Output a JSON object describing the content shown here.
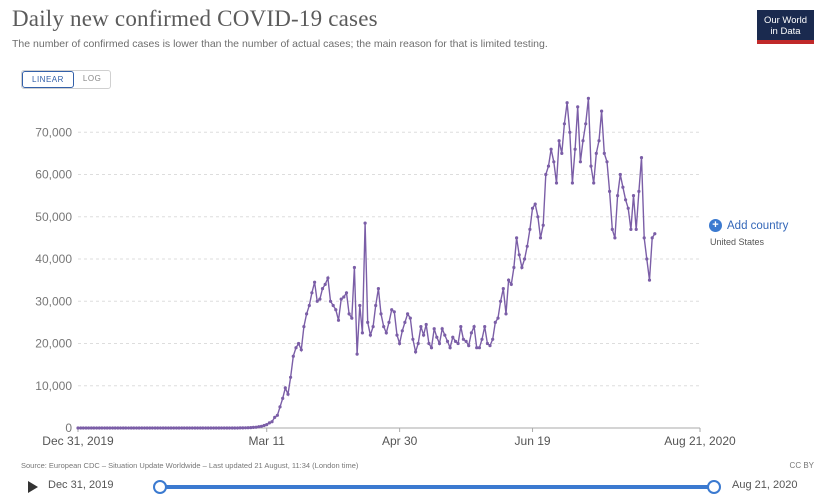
{
  "header": {
    "title": "Daily new confirmed COVID-19 cases",
    "subtitle": "The number of confirmed cases is lower than the number of actual cases; the main reason for that is limited testing.",
    "logo_line1": "Our World",
    "logo_line2": "in Data"
  },
  "scale_toggle": {
    "linear": "LINEAR",
    "log": "LOG",
    "selected": "LINEAR"
  },
  "controls": {
    "add_country": "Add country",
    "series_label": "United States"
  },
  "footer": {
    "source": "Source: European CDC – Situation Update Worldwide – Last updated 21 August, 11:34 (London time)",
    "license": "CC BY"
  },
  "timeline": {
    "start": "Dec 31, 2019",
    "end": "Aug 21, 2020"
  },
  "colors": {
    "series": "#7b5ea7",
    "accent": "#3b7ad0",
    "logo_bg": "#1a2a4f",
    "logo_bar": "#c0292a"
  },
  "chart_data": {
    "type": "line",
    "title": "Daily new confirmed COVID-19 cases",
    "xlabel": "",
    "ylabel": "",
    "ylim": [
      0,
      80000
    ],
    "yticks": [
      0,
      10000,
      20000,
      30000,
      40000,
      50000,
      60000,
      70000
    ],
    "ytick_labels": [
      "0",
      "10,000",
      "20,000",
      "30,000",
      "40,000",
      "50,000",
      "60,000",
      "70,000"
    ],
    "xticks": [
      {
        "day": 0,
        "label": "Dec 31, 2019"
      },
      {
        "day": 71,
        "label": "Mar 11"
      },
      {
        "day": 121,
        "label": "Apr 30"
      },
      {
        "day": 171,
        "label": "Jun 19"
      },
      {
        "day": 234,
        "label": "Aug 21, 2020"
      }
    ],
    "grid": true,
    "series": [
      {
        "name": "United States",
        "points": [
          [
            0,
            0
          ],
          [
            60,
            0
          ],
          [
            63,
            50
          ],
          [
            65,
            100
          ],
          [
            67,
            200
          ],
          [
            69,
            400
          ],
          [
            70,
            600
          ],
          [
            71,
            800
          ],
          [
            72,
            1200
          ],
          [
            73,
            1500
          ],
          [
            74,
            2500
          ],
          [
            75,
            3000
          ],
          [
            76,
            5000
          ],
          [
            77,
            7000
          ],
          [
            78,
            9500
          ],
          [
            79,
            8000
          ],
          [
            80,
            12000
          ],
          [
            81,
            17000
          ],
          [
            82,
            19000
          ],
          [
            83,
            20000
          ],
          [
            84,
            18500
          ],
          [
            85,
            24000
          ],
          [
            86,
            27000
          ],
          [
            87,
            29000
          ],
          [
            88,
            32000
          ],
          [
            89,
            34500
          ],
          [
            90,
            30000
          ],
          [
            91,
            30500
          ],
          [
            92,
            33000
          ],
          [
            93,
            34000
          ],
          [
            94,
            35500
          ],
          [
            95,
            30000
          ],
          [
            96,
            29000
          ],
          [
            97,
            28000
          ],
          [
            98,
            25500
          ],
          [
            99,
            30500
          ],
          [
            100,
            31000
          ],
          [
            101,
            32000
          ],
          [
            102,
            27000
          ],
          [
            103,
            26000
          ],
          [
            104,
            38000
          ],
          [
            105,
            17500
          ],
          [
            106,
            29000
          ],
          [
            107,
            22500
          ],
          [
            108,
            48500
          ],
          [
            109,
            25000
          ],
          [
            110,
            22000
          ],
          [
            111,
            24000
          ],
          [
            112,
            29000
          ],
          [
            113,
            33000
          ],
          [
            114,
            27000
          ],
          [
            115,
            24000
          ],
          [
            116,
            22500
          ],
          [
            117,
            25000
          ],
          [
            118,
            28000
          ],
          [
            119,
            27500
          ],
          [
            120,
            22000
          ],
          [
            121,
            20000
          ],
          [
            122,
            23000
          ],
          [
            123,
            25000
          ],
          [
            124,
            27000
          ],
          [
            125,
            26000
          ],
          [
            126,
            21000
          ],
          [
            127,
            18000
          ],
          [
            128,
            20000
          ],
          [
            129,
            24000
          ],
          [
            130,
            22000
          ],
          [
            131,
            24500
          ],
          [
            132,
            20000
          ],
          [
            133,
            19000
          ],
          [
            134,
            23500
          ],
          [
            135,
            21500
          ],
          [
            136,
            20000
          ],
          [
            137,
            23500
          ],
          [
            138,
            22000
          ],
          [
            139,
            20500
          ],
          [
            140,
            19000
          ],
          [
            141,
            21500
          ],
          [
            142,
            20500
          ],
          [
            143,
            20000
          ],
          [
            144,
            24000
          ],
          [
            145,
            21000
          ],
          [
            146,
            20500
          ],
          [
            147,
            19500
          ],
          [
            148,
            22500
          ],
          [
            149,
            24000
          ],
          [
            150,
            19000
          ],
          [
            151,
            19000
          ],
          [
            152,
            21000
          ],
          [
            153,
            24000
          ],
          [
            154,
            20000
          ],
          [
            155,
            19500
          ],
          [
            156,
            21000
          ],
          [
            157,
            25000
          ],
          [
            158,
            26000
          ],
          [
            159,
            30000
          ],
          [
            160,
            33000
          ],
          [
            161,
            27000
          ],
          [
            162,
            35000
          ],
          [
            163,
            34000
          ],
          [
            164,
            38000
          ],
          [
            165,
            45000
          ],
          [
            166,
            41000
          ],
          [
            167,
            38000
          ],
          [
            168,
            40000
          ],
          [
            169,
            43000
          ],
          [
            170,
            47000
          ],
          [
            171,
            52000
          ],
          [
            172,
            53000
          ],
          [
            173,
            50000
          ],
          [
            174,
            45000
          ],
          [
            175,
            48000
          ],
          [
            176,
            60000
          ],
          [
            177,
            62000
          ],
          [
            178,
            66000
          ],
          [
            179,
            63000
          ],
          [
            180,
            58000
          ],
          [
            181,
            68000
          ],
          [
            182,
            65000
          ],
          [
            183,
            72000
          ],
          [
            184,
            77000
          ],
          [
            185,
            70000
          ],
          [
            186,
            58000
          ],
          [
            187,
            66000
          ],
          [
            188,
            76000
          ],
          [
            189,
            63000
          ],
          [
            190,
            68000
          ],
          [
            191,
            72000
          ],
          [
            192,
            78000
          ],
          [
            193,
            62000
          ],
          [
            194,
            58000
          ],
          [
            195,
            65000
          ],
          [
            196,
            68000
          ],
          [
            197,
            75000
          ],
          [
            198,
            65000
          ],
          [
            199,
            63000
          ],
          [
            200,
            56000
          ],
          [
            201,
            47000
          ],
          [
            202,
            45000
          ],
          [
            203,
            55000
          ],
          [
            204,
            60000
          ],
          [
            205,
            57000
          ],
          [
            206,
            54000
          ],
          [
            207,
            52000
          ],
          [
            208,
            47000
          ],
          [
            209,
            55000
          ],
          [
            210,
            47000
          ],
          [
            211,
            56000
          ],
          [
            212,
            64000
          ],
          [
            213,
            45000
          ],
          [
            214,
            40000
          ],
          [
            215,
            35000
          ],
          [
            216,
            45000
          ],
          [
            217,
            46000
          ]
        ]
      }
    ]
  }
}
